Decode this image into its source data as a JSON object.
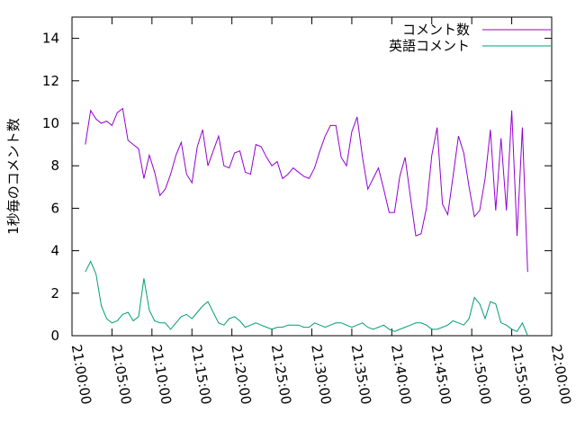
{
  "chart_data": {
    "type": "line",
    "y_label": "1秒毎のコメント数",
    "x": [
      "21:01:40",
      "21:02:20",
      "21:03:00",
      "21:03:40",
      "21:04:20",
      "21:05:00",
      "21:05:40",
      "21:06:20",
      "21:07:00",
      "21:07:40",
      "21:08:20",
      "21:09:00",
      "21:09:40",
      "21:10:20",
      "21:11:00",
      "21:11:40",
      "21:12:20",
      "21:13:00",
      "21:13:40",
      "21:14:20",
      "21:15:00",
      "21:15:40",
      "21:16:20",
      "21:17:00",
      "21:17:40",
      "21:18:20",
      "21:19:00",
      "21:19:40",
      "21:20:20",
      "21:21:00",
      "21:21:40",
      "21:22:20",
      "21:23:00",
      "21:23:40",
      "21:24:20",
      "21:25:00",
      "21:25:40",
      "21:26:20",
      "21:27:00",
      "21:27:40",
      "21:28:20",
      "21:29:00",
      "21:29:40",
      "21:30:20",
      "21:31:00",
      "21:31:40",
      "21:32:20",
      "21:33:00",
      "21:33:40",
      "21:34:20",
      "21:35:00",
      "21:35:40",
      "21:36:20",
      "21:37:00",
      "21:37:40",
      "21:38:20",
      "21:39:00",
      "21:39:40",
      "21:40:20",
      "21:41:00",
      "21:41:40",
      "21:42:20",
      "21:43:00",
      "21:43:40",
      "21:44:20",
      "21:45:00",
      "21:45:40",
      "21:46:20",
      "21:47:00",
      "21:47:40",
      "21:48:20",
      "21:49:00",
      "21:49:40",
      "21:50:20",
      "21:51:00",
      "21:51:40",
      "21:52:20",
      "21:53:00",
      "21:53:40",
      "21:54:20",
      "21:55:00",
      "21:55:40",
      "21:56:20",
      "21:57:00"
    ],
    "series": [
      {
        "name": "コメント数",
        "color": "#9400d3",
        "values": [
          9.0,
          10.6,
          10.2,
          10.0,
          10.1,
          9.9,
          10.5,
          10.7,
          9.2,
          9.0,
          8.8,
          7.4,
          8.5,
          7.7,
          6.6,
          6.9,
          7.6,
          8.5,
          9.1,
          7.6,
          7.2,
          8.9,
          9.7,
          8.0,
          8.7,
          9.4,
          8.0,
          7.9,
          8.6,
          8.7,
          7.7,
          7.6,
          9.0,
          8.9,
          8.4,
          8.0,
          8.2,
          7.4,
          7.6,
          7.9,
          7.7,
          7.5,
          7.4,
          7.9,
          8.7,
          9.4,
          9.9,
          9.9,
          8.4,
          8.0,
          9.6,
          10.3,
          8.4,
          6.9,
          7.4,
          7.9,
          6.9,
          5.8,
          5.8,
          7.5,
          8.4,
          6.5,
          4.7,
          4.8,
          6.0,
          8.5,
          9.8,
          6.2,
          5.7,
          7.5,
          9.4,
          8.6,
          7.0,
          5.6,
          5.9,
          7.4,
          9.7,
          5.9,
          9.3,
          5.9,
          10.6,
          4.7,
          9.8,
          3.0
        ]
      },
      {
        "name": "英語コメント",
        "color": "#009e73",
        "values": [
          3.0,
          3.5,
          2.9,
          1.4,
          0.8,
          0.6,
          0.7,
          1.0,
          1.1,
          0.7,
          0.9,
          2.7,
          1.2,
          0.7,
          0.6,
          0.6,
          0.3,
          0.6,
          0.9,
          1.0,
          0.8,
          1.1,
          1.4,
          1.6,
          1.1,
          0.6,
          0.5,
          0.8,
          0.9,
          0.7,
          0.4,
          0.5,
          0.6,
          0.5,
          0.4,
          0.3,
          0.4,
          0.4,
          0.5,
          0.5,
          0.5,
          0.4,
          0.4,
          0.6,
          0.5,
          0.4,
          0.5,
          0.6,
          0.6,
          0.5,
          0.4,
          0.5,
          0.6,
          0.4,
          0.3,
          0.4,
          0.5,
          0.3,
          0.2,
          0.3,
          0.4,
          0.5,
          0.6,
          0.6,
          0.5,
          0.3,
          0.3,
          0.4,
          0.5,
          0.7,
          0.6,
          0.5,
          0.8,
          1.8,
          1.5,
          0.8,
          1.6,
          1.5,
          0.6,
          0.5,
          0.3,
          0.2,
          0.6,
          0.0
        ]
      }
    ],
    "xlim": [
      "21:00:00",
      "22:00:00"
    ],
    "xticks": [
      "21:00:00",
      "21:05:00",
      "21:10:00",
      "21:15:00",
      "21:20:00",
      "21:25:00",
      "21:30:00",
      "21:35:00",
      "21:40:00",
      "21:45:00",
      "21:50:00",
      "21:55:00",
      "22:00:00"
    ],
    "ylim": [
      0,
      15
    ],
    "yticks": [
      0,
      2,
      4,
      6,
      8,
      10,
      12,
      14
    ],
    "legend": "top-right"
  }
}
